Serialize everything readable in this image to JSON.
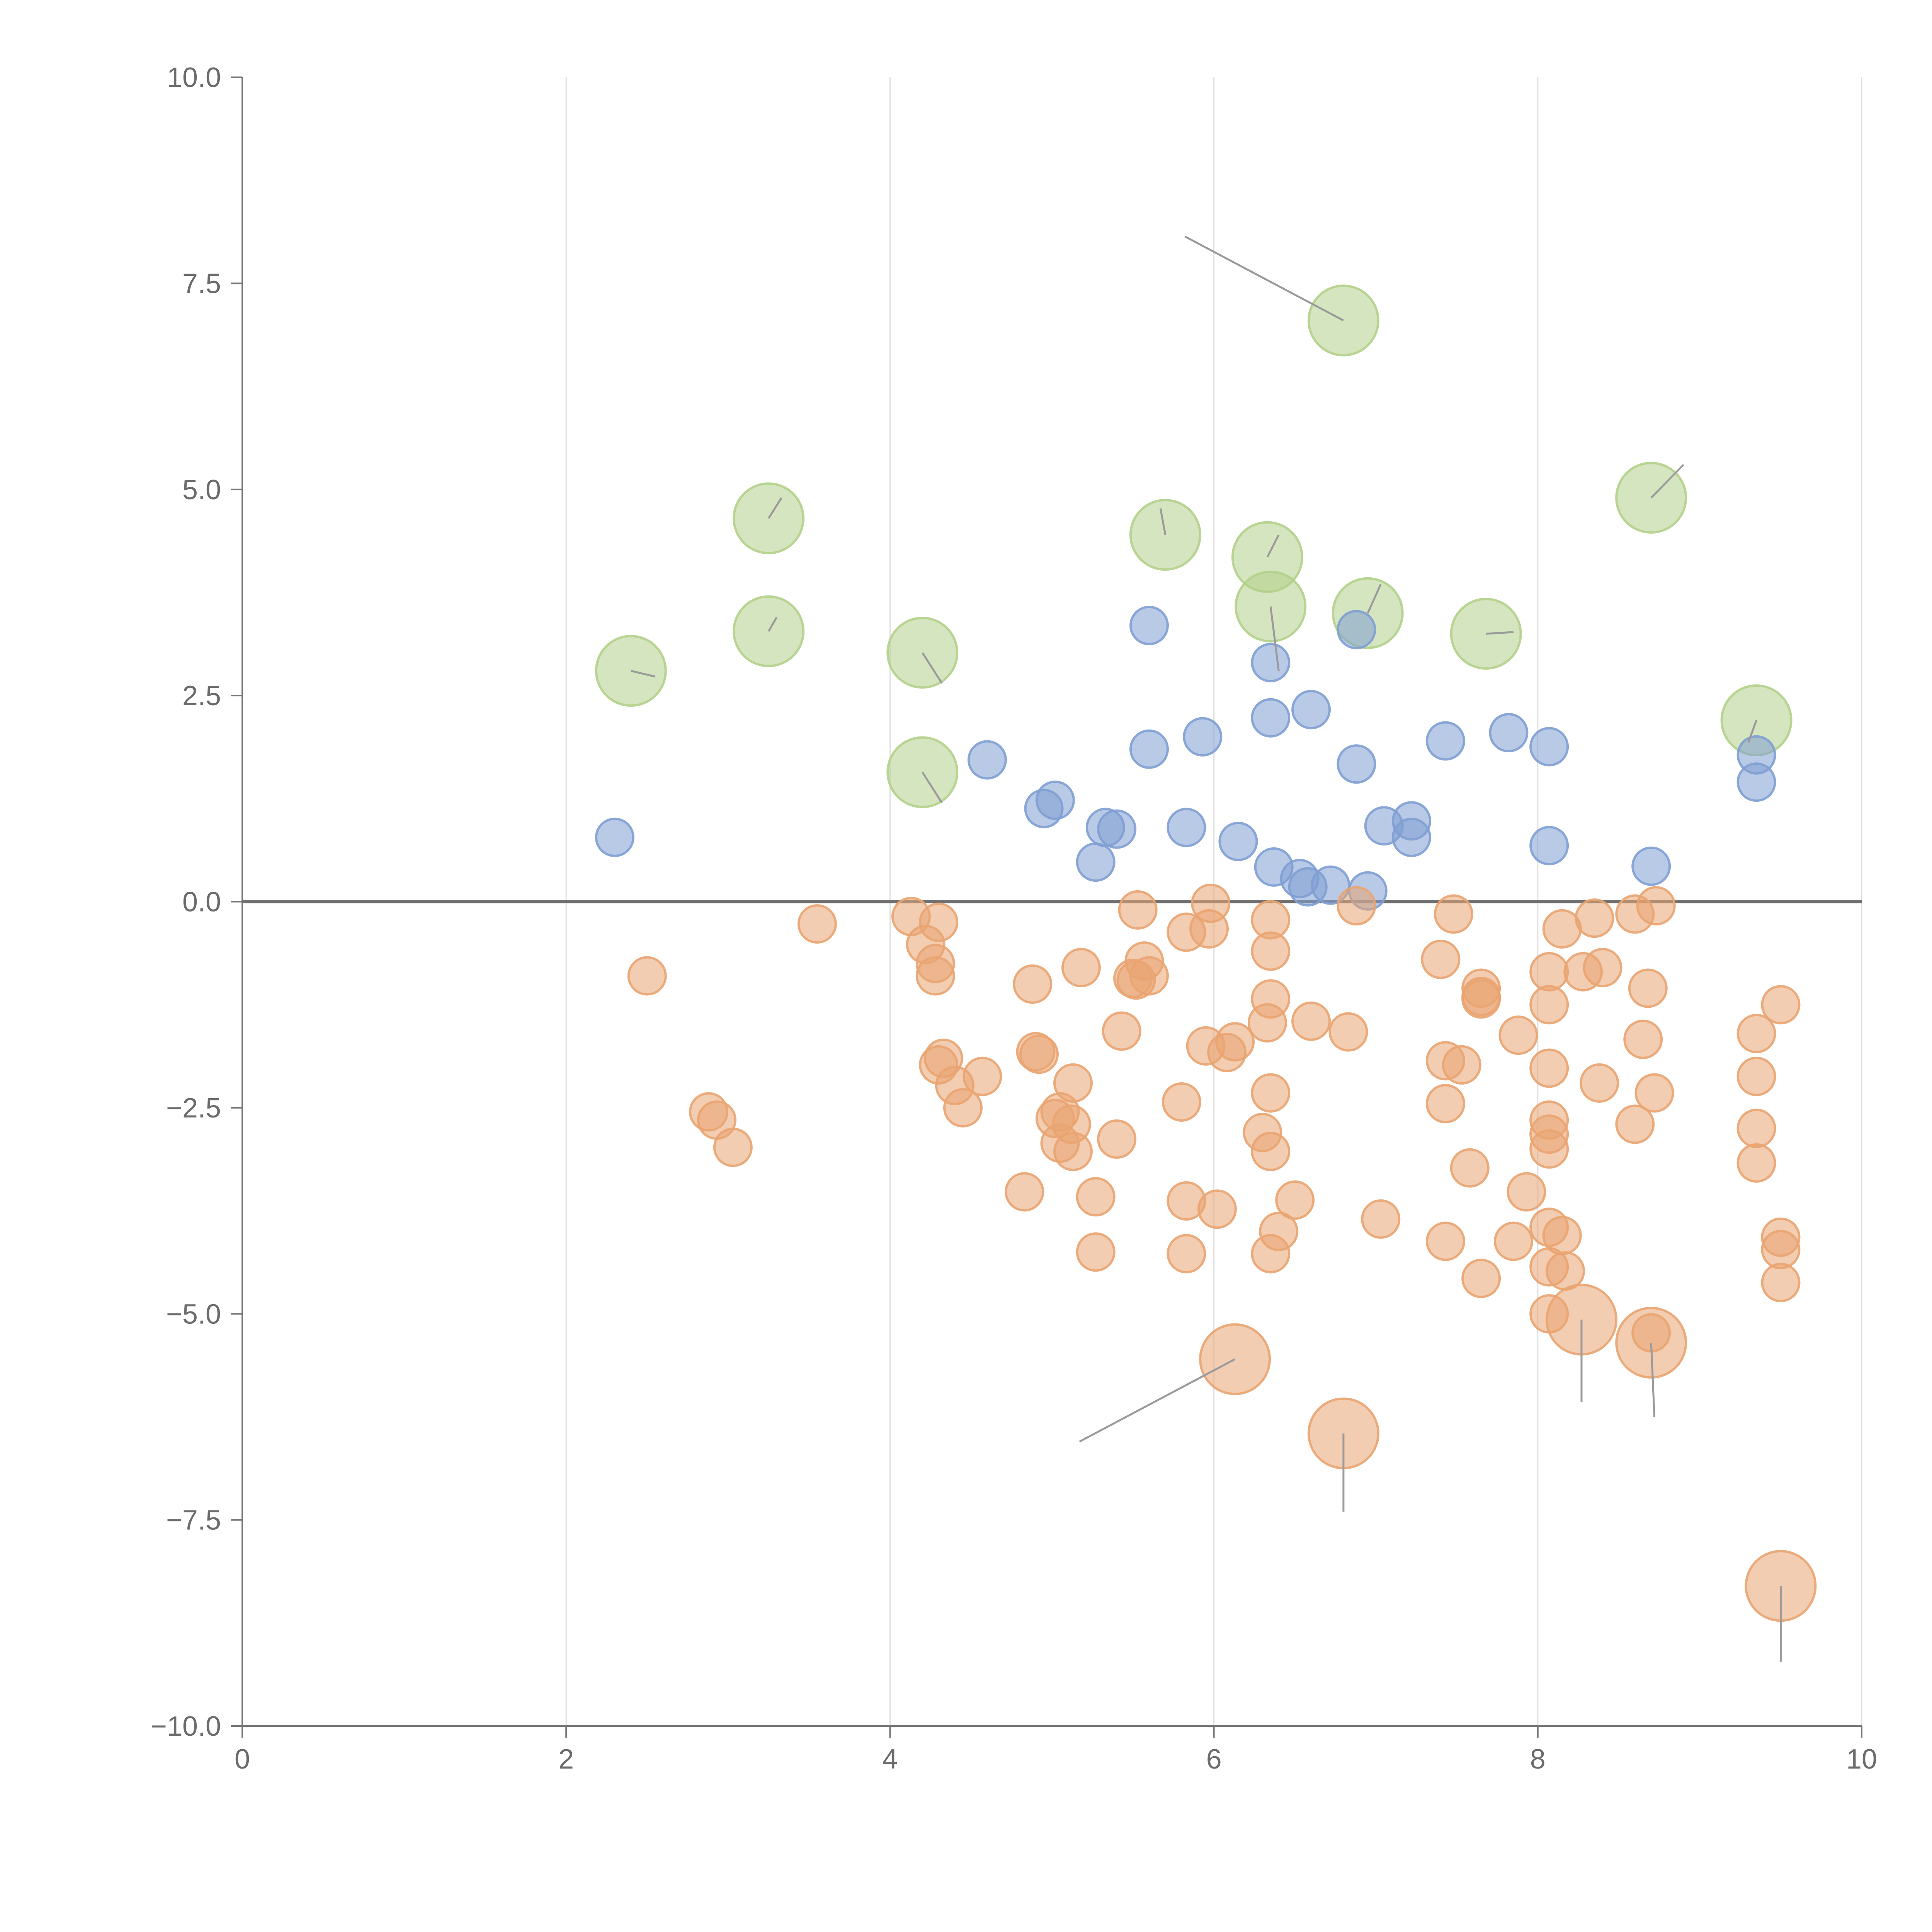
{
  "chart_data": {
    "type": "scatter",
    "title": "",
    "xlabel": "",
    "ylabel": "",
    "xlim": [
      0,
      10
    ],
    "ylim": [
      -10,
      10
    ],
    "grid": "vertical",
    "zero_line": true,
    "xticks": [
      0,
      2,
      4,
      6,
      8,
      10
    ],
    "yticks": [
      10,
      7.5,
      5,
      2.5,
      0,
      -2.5,
      -5,
      -7.5,
      -10
    ],
    "xtick_labels": [
      "0",
      "2",
      "4",
      "6",
      "8",
      "10"
    ],
    "ytick_labels": [
      "10.0",
      "7.5",
      "5.0",
      "2.5",
      "0.0",
      "−2.5",
      "−5.0",
      "−7.5",
      "−10.0"
    ],
    "colors": {
      "green": "#b3d08a",
      "blue": "#7f9fd3",
      "orange": "#e9a471",
      "grid": "#dedede",
      "axis": "#777777"
    },
    "series": [
      {
        "name": "green",
        "color": "#b3d08a",
        "size": "large",
        "points": [
          [
            6.8,
            7.05
          ],
          [
            8.7,
            4.9
          ],
          [
            3.25,
            4.65
          ],
          [
            5.7,
            4.45
          ],
          [
            6.33,
            4.18
          ],
          [
            6.35,
            3.58
          ],
          [
            6.95,
            3.5
          ],
          [
            3.25,
            3.28
          ],
          [
            7.68,
            3.25
          ],
          [
            4.2,
            3.02
          ],
          [
            2.4,
            2.8
          ],
          [
            9.35,
            2.2
          ],
          [
            4.2,
            1.57
          ]
        ]
      },
      {
        "name": "blue",
        "color": "#7f9fd3",
        "size": "small",
        "points": [
          [
            5.6,
            3.35
          ],
          [
            6.88,
            3.3
          ],
          [
            6.35,
            2.9
          ],
          [
            6.6,
            2.33
          ],
          [
            6.35,
            2.23
          ],
          [
            7.82,
            2.05
          ],
          [
            5.93,
            2.0
          ],
          [
            7.43,
            1.95
          ],
          [
            8.07,
            1.88
          ],
          [
            5.6,
            1.85
          ],
          [
            9.35,
            1.78
          ],
          [
            4.6,
            1.72
          ],
          [
            6.88,
            1.67
          ],
          [
            9.35,
            1.45
          ],
          [
            5.02,
            1.23
          ],
          [
            4.95,
            1.13
          ],
          [
            7.22,
            0.98
          ],
          [
            7.05,
            0.92
          ],
          [
            5.33,
            0.9
          ],
          [
            5.4,
            0.88
          ],
          [
            5.83,
            0.9
          ],
          [
            7.22,
            0.78
          ],
          [
            2.3,
            0.78
          ],
          [
            6.15,
            0.73
          ],
          [
            8.07,
            0.68
          ],
          [
            5.27,
            0.48
          ],
          [
            8.7,
            0.43
          ],
          [
            6.37,
            0.42
          ],
          [
            6.53,
            0.28
          ],
          [
            6.72,
            0.2
          ],
          [
            6.58,
            0.18
          ],
          [
            6.95,
            0.13
          ]
        ]
      },
      {
        "name": "orange",
        "color": "#e9a471",
        "size": "small",
        "points": [
          [
            5.98,
            -0.02
          ],
          [
            8.73,
            -0.05
          ],
          [
            6.88,
            -0.05
          ],
          [
            5.53,
            -0.1
          ],
          [
            7.48,
            -0.15
          ],
          [
            8.6,
            -0.15
          ],
          [
            4.13,
            -0.18
          ],
          [
            8.35,
            -0.2
          ],
          [
            6.35,
            -0.22
          ],
          [
            4.3,
            -0.25
          ],
          [
            3.55,
            -0.27
          ],
          [
            8.15,
            -0.33
          ],
          [
            5.97,
            -0.33
          ],
          [
            5.83,
            -0.37
          ],
          [
            4.22,
            -0.52
          ],
          [
            6.35,
            -0.6
          ],
          [
            7.4,
            -0.7
          ],
          [
            5.57,
            -0.72
          ],
          [
            4.28,
            -0.75
          ],
          [
            5.18,
            -0.8
          ],
          [
            8.4,
            -0.8
          ],
          [
            8.07,
            -0.85
          ],
          [
            8.28,
            -0.85
          ],
          [
            4.28,
            -0.9
          ],
          [
            2.5,
            -0.9
          ],
          [
            5.6,
            -0.9
          ],
          [
            5.5,
            -0.93
          ],
          [
            5.52,
            -0.95
          ],
          [
            4.88,
            -1.0
          ],
          [
            7.65,
            -1.05
          ],
          [
            8.68,
            -1.05
          ],
          [
            7.65,
            -1.15
          ],
          [
            7.65,
            -1.18
          ],
          [
            6.35,
            -1.18
          ],
          [
            8.07,
            -1.25
          ],
          [
            9.5,
            -1.25
          ],
          [
            6.33,
            -1.47
          ],
          [
            6.6,
            -1.45
          ],
          [
            5.43,
            -1.57
          ],
          [
            6.83,
            -1.58
          ],
          [
            7.88,
            -1.62
          ],
          [
            9.35,
            -1.6
          ],
          [
            8.65,
            -1.67
          ],
          [
            6.13,
            -1.7
          ],
          [
            5.95,
            -1.75
          ],
          [
            6.08,
            -1.83
          ],
          [
            4.9,
            -1.82
          ],
          [
            4.92,
            -1.85
          ],
          [
            4.33,
            -1.9
          ],
          [
            7.43,
            -1.93
          ],
          [
            7.53,
            -1.98
          ],
          [
            4.3,
            -1.98
          ],
          [
            8.07,
            -2.02
          ],
          [
            4.57,
            -2.12
          ],
          [
            9.35,
            -2.12
          ],
          [
            5.13,
            -2.2
          ],
          [
            8.38,
            -2.2
          ],
          [
            4.4,
            -2.23
          ],
          [
            7.43,
            -2.45
          ],
          [
            8.72,
            -2.32
          ],
          [
            6.35,
            -2.32
          ],
          [
            4.45,
            -2.5
          ],
          [
            5.8,
            -2.43
          ],
          [
            2.88,
            -2.55
          ],
          [
            5.05,
            -2.55
          ],
          [
            5.02,
            -2.63
          ],
          [
            2.93,
            -2.65
          ],
          [
            8.07,
            -2.65
          ],
          [
            5.12,
            -2.7
          ],
          [
            8.6,
            -2.7
          ],
          [
            9.35,
            -2.75
          ],
          [
            6.3,
            -2.8
          ],
          [
            8.07,
            -2.82
          ],
          [
            5.4,
            -2.88
          ],
          [
            5.05,
            -2.93
          ],
          [
            3.03,
            -2.98
          ],
          [
            8.07,
            -3.0
          ],
          [
            6.35,
            -3.03
          ],
          [
            5.13,
            -3.03
          ],
          [
            9.35,
            -3.17
          ],
          [
            7.58,
            -3.23
          ],
          [
            7.93,
            -3.52
          ],
          [
            4.83,
            -3.52
          ],
          [
            5.27,
            -3.58
          ],
          [
            6.5,
            -3.62
          ],
          [
            5.83,
            -3.63
          ],
          [
            6.02,
            -3.73
          ],
          [
            7.03,
            -3.85
          ],
          [
            8.07,
            -3.95
          ],
          [
            6.4,
            -4.0
          ],
          [
            8.15,
            -4.05
          ],
          [
            9.5,
            -4.07
          ],
          [
            7.43,
            -4.12
          ],
          [
            7.85,
            -4.12
          ],
          [
            9.5,
            -4.22
          ],
          [
            5.27,
            -4.25
          ],
          [
            5.83,
            -4.27
          ],
          [
            6.35,
            -4.27
          ],
          [
            8.07,
            -4.43
          ],
          [
            8.17,
            -4.48
          ],
          [
            7.65,
            -4.57
          ],
          [
            9.5,
            -4.62
          ],
          [
            8.07,
            -5.0
          ],
          [
            8.7,
            -5.23
          ]
        ]
      },
      {
        "name": "orange-large",
        "color": "#e9a471",
        "size": "large",
        "points": [
          [
            8.27,
            -5.07
          ],
          [
            8.7,
            -5.35
          ],
          [
            6.13,
            -5.55
          ],
          [
            6.8,
            -6.45
          ],
          [
            9.5,
            -8.3
          ]
        ]
      }
    ],
    "leaders": [
      {
        "from": [
          6.8,
          7.05
        ],
        "to": [
          5.82,
          8.07
        ]
      },
      {
        "from": [
          3.25,
          4.65
        ],
        "to": [
          3.33,
          4.9
        ]
      },
      {
        "from": [
          5.7,
          4.45
        ],
        "to": [
          5.67,
          4.77
        ]
      },
      {
        "from": [
          6.33,
          4.18
        ],
        "to": [
          6.4,
          4.45
        ]
      },
      {
        "from": [
          6.35,
          3.58
        ],
        "to": [
          6.4,
          2.8
        ]
      },
      {
        "from": [
          6.95,
          3.5
        ],
        "to": [
          7.03,
          3.85
        ]
      },
      {
        "from": [
          3.25,
          3.28
        ],
        "to": [
          3.3,
          3.45
        ]
      },
      {
        "from": [
          7.68,
          3.25
        ],
        "to": [
          7.85,
          3.27
        ]
      },
      {
        "from": [
          4.2,
          3.02
        ],
        "to": [
          4.32,
          2.65
        ]
      },
      {
        "from": [
          2.4,
          2.8
        ],
        "to": [
          2.55,
          2.73
        ]
      },
      {
        "from": [
          8.7,
          4.9
        ],
        "to": [
          8.9,
          5.3
        ]
      },
      {
        "from": [
          9.35,
          2.2
        ],
        "to": [
          9.3,
          1.93
        ]
      },
      {
        "from": [
          4.2,
          1.57
        ],
        "to": [
          4.32,
          1.2
        ]
      },
      {
        "from": [
          6.13,
          -5.55
        ],
        "to": [
          5.17,
          -6.55
        ]
      },
      {
        "from": [
          8.27,
          -5.07
        ],
        "to": [
          8.27,
          -6.07
        ]
      },
      {
        "from": [
          8.7,
          -5.35
        ],
        "to": [
          8.72,
          -6.25
        ]
      },
      {
        "from": [
          6.8,
          -6.45
        ],
        "to": [
          6.8,
          -7.4
        ]
      },
      {
        "from": [
          9.5,
          -8.3
        ],
        "to": [
          9.5,
          -9.22
        ]
      }
    ]
  }
}
